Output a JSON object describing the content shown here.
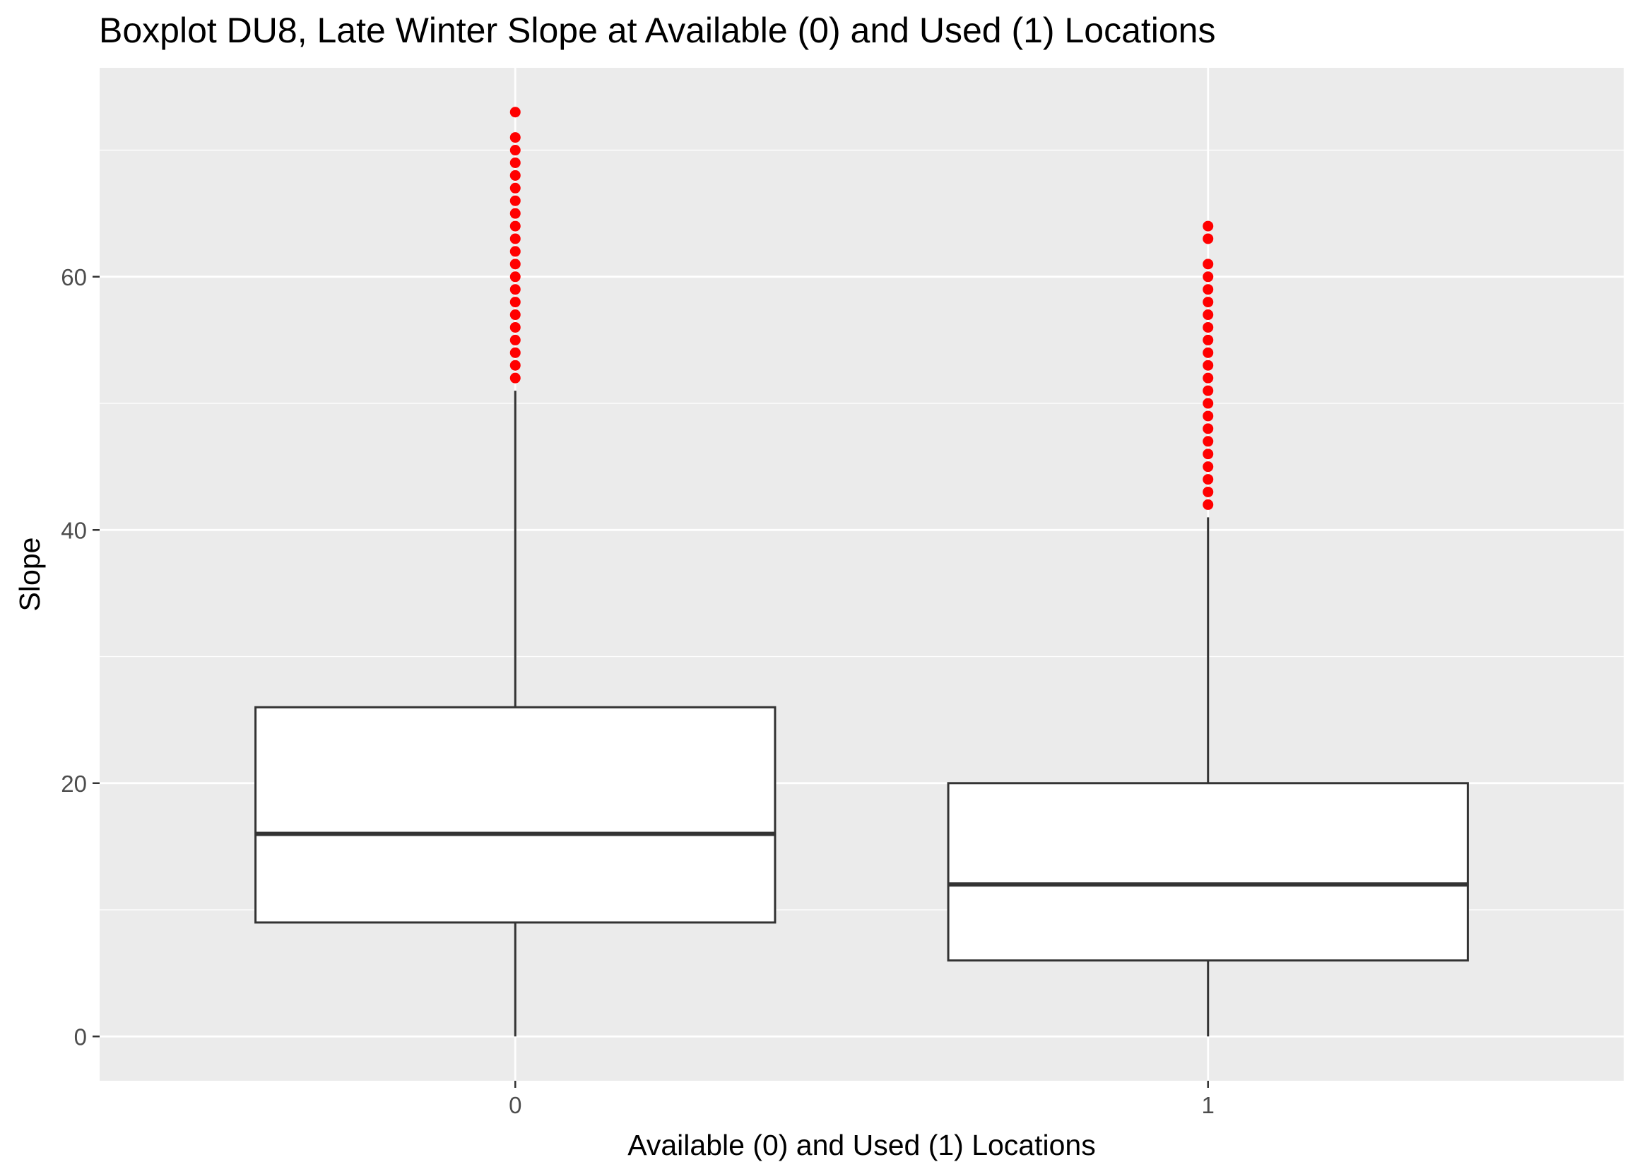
{
  "chart_data": {
    "type": "boxplot",
    "title": "Boxplot DU8, Late Winter Slope at Available (0) and Used (1) Locations",
    "xlabel": "Available (0) and Used (1) Locations",
    "ylabel": "Slope",
    "ylim": [
      -3.5,
      76.5
    ],
    "yticks": [
      0,
      20,
      40,
      60
    ],
    "grid": true,
    "colors": {
      "panel": "#EBEBEB",
      "grid": "#FFFFFF",
      "box_fill": "#FFFFFF",
      "box_line": "#333333",
      "outlier": "#FF0000",
      "tick_text": "#4D4D4D"
    },
    "categories": [
      "0",
      "1"
    ],
    "boxes": [
      {
        "category": "0",
        "min": 0,
        "q1": 9,
        "median": 16,
        "q3": 26,
        "max": 51,
        "outliers": [
          52,
          53,
          54,
          55,
          56,
          57,
          58,
          59,
          60,
          61,
          62,
          63,
          64,
          65,
          66,
          67,
          68,
          69,
          70,
          71,
          73
        ]
      },
      {
        "category": "1",
        "min": 0,
        "q1": 6,
        "median": 12,
        "q3": 20,
        "max": 41,
        "outliers": [
          42,
          43,
          44,
          45,
          46,
          47,
          48,
          49,
          50,
          51,
          52,
          53,
          54,
          55,
          56,
          57,
          58,
          59,
          60,
          61,
          63,
          64
        ]
      }
    ]
  }
}
